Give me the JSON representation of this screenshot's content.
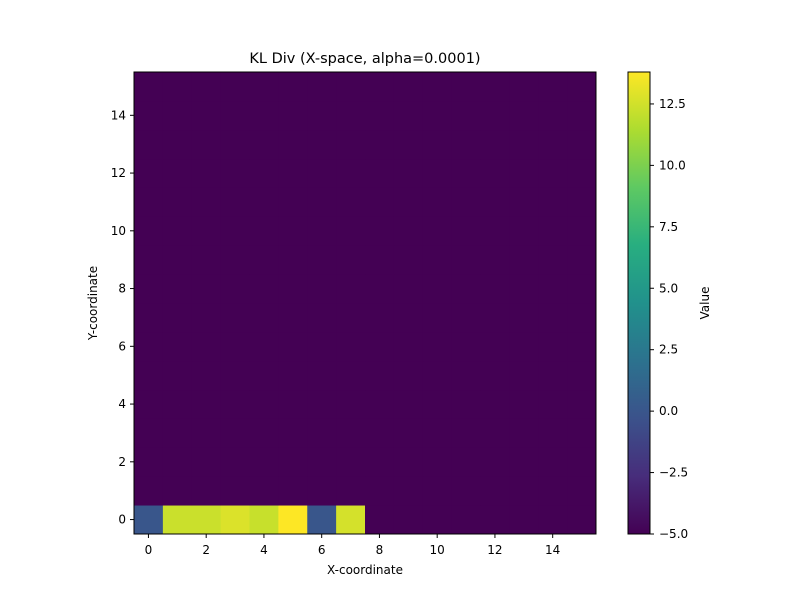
{
  "chart_data": {
    "type": "heatmap",
    "title": "KL Div (X-space, alpha=0.0001)",
    "xlabel": "X-coordinate",
    "ylabel": "Y-coordinate",
    "colorbar_label": "Value",
    "colormap": "viridis",
    "xlim": [
      -0.5,
      15.5
    ],
    "ylim": [
      -0.5,
      15.5
    ],
    "vmin": -5.0,
    "vmax": 13.8,
    "xticks": [
      0,
      2,
      4,
      6,
      8,
      10,
      12,
      14
    ],
    "yticks": [
      0,
      2,
      4,
      6,
      8,
      10,
      12,
      14
    ],
    "colorbar_ticks": [
      "12.5",
      "10.0",
      "7.5",
      "5.0",
      "2.5",
      "0.0",
      "−2.5",
      "−5.0"
    ],
    "colorbar_tick_values": [
      12.5,
      10.0,
      7.5,
      5.0,
      2.5,
      0.0,
      -2.5,
      -5.0
    ],
    "grid_size": [
      16,
      16
    ],
    "default_value": -5.0,
    "cells": [
      {
        "x": 0,
        "y": 0,
        "value": 0.0
      },
      {
        "x": 1,
        "y": 0,
        "value": 12.3
      },
      {
        "x": 2,
        "y": 0,
        "value": 12.3
      },
      {
        "x": 3,
        "y": 0,
        "value": 12.8
      },
      {
        "x": 4,
        "y": 0,
        "value": 12.2
      },
      {
        "x": 5,
        "y": 0,
        "value": 13.8
      },
      {
        "x": 6,
        "y": 0,
        "value": 0.0
      },
      {
        "x": 7,
        "y": 0,
        "value": 12.6
      }
    ]
  }
}
